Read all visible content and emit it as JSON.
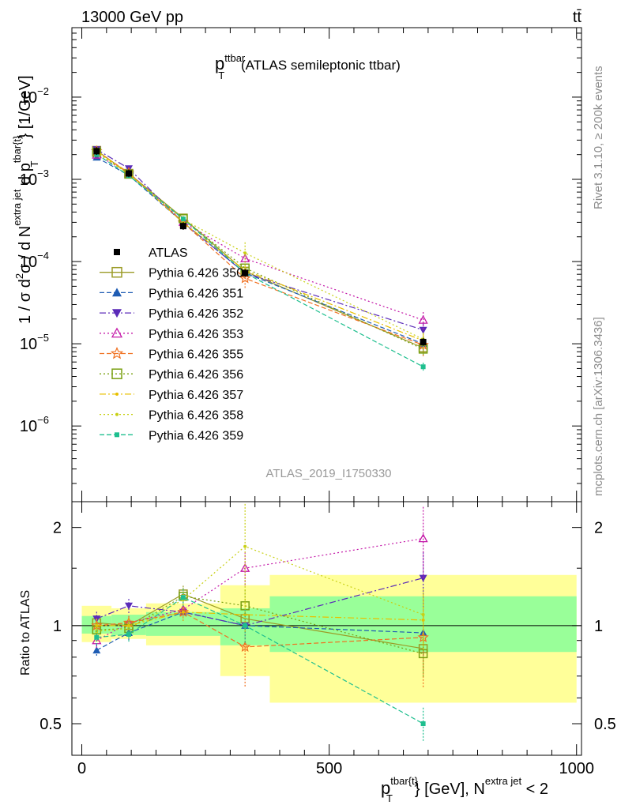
{
  "header": {
    "left": "13000 GeV pp",
    "right": "tt̄"
  },
  "side_texts": {
    "rivet": "Rivet 3.1.10, ≥ 200k events",
    "mcplots": "mcplots.cern.ch [arXiv:1306.3436]"
  },
  "axes": {
    "y_main_title": "1 / σ d²σ / d N^{extra jet} d p_T^{tbar{t}} [1/GeV]",
    "y_main_parts": {
      "prefix": "1 / σ d",
      "sup2": "2",
      "mid": "σ / d N",
      "sup_extra": "extra jet",
      "dp": " d p",
      "sub_t": "T",
      "sup_tbar": "tbar{t}",
      "unit": "} [1/GeV]"
    },
    "y_ratio_title": "Ratio to ATLAS",
    "x_parts": {
      "p": "p",
      "sub": "T",
      "sup": "tbar{t}",
      "unit": "} [GeV], N",
      "sup2": "extra jet",
      "end": " < 2"
    },
    "x_ticks": [
      "0",
      "500",
      "1000"
    ],
    "ratio_ticks": [
      "0.5",
      "1",
      "2"
    ],
    "main_ticks": [
      {
        "base": "10",
        "exp": "−6",
        "value": 1e-06
      },
      {
        "base": "10",
        "exp": "−5",
        "value": 1e-05
      },
      {
        "base": "10",
        "exp": "−4",
        "value": 0.0001
      },
      {
        "base": "10",
        "exp": "−3",
        "value": 0.001
      },
      {
        "base": "10",
        "exp": "−2",
        "value": 0.01
      }
    ]
  },
  "chart_data": {
    "type": "line",
    "title": "p_T^{ttbar} (ATLAS semileptonic ttbar)",
    "title_parts": {
      "p": "p",
      "sub": "T",
      "sup": "ttbar",
      "rest": " (ATLAS semileptonic ttbar)"
    },
    "analysis_label": "ATLAS_2019_I1750330",
    "xlabel": "p_T^{tbar{t}} [GeV], N^{extra jet} < 2",
    "ylabel": "1 / σ d²σ / d N^{extra jet} d p_T^{tbar{t}} [1/GeV]",
    "xlim": [
      -20,
      1010
    ],
    "ylim": [
      1.2e-07,
      0.07
    ],
    "ratio_ylim": [
      0.4,
      2.4
    ],
    "x": [
      30,
      95,
      205,
      330,
      690
    ],
    "bins": [
      [
        0,
        60
      ],
      [
        60,
        130
      ],
      [
        130,
        280
      ],
      [
        280,
        380
      ],
      [
        380,
        1000
      ]
    ],
    "atlas": {
      "name": "ATLAS",
      "values": [
        0.0022,
        0.00118,
        0.00027,
        7.25e-05,
        1.05e-05
      ],
      "band_inner": [
        [
          0.945,
          1.07
        ],
        [
          0.935,
          1.08
        ],
        [
          0.93,
          1.1
        ],
        [
          0.87,
          1.13
        ],
        [
          0.83,
          1.23
        ]
      ],
      "band_outer": [
        [
          0.89,
          1.15
        ],
        [
          0.91,
          1.13
        ],
        [
          0.87,
          1.17
        ],
        [
          0.7,
          1.33
        ],
        [
          0.58,
          1.43
        ]
      ]
    },
    "series": [
      {
        "name": "Pythia 6.426 350",
        "color": "#9b9b26",
        "dash": "",
        "marker": "square-open",
        "ratio": [
          1.02,
          1.0,
          1.25,
          1.05,
          0.85
        ],
        "err": [
          0.05,
          0.05,
          0.06,
          0.1,
          0.15
        ]
      },
      {
        "name": "Pythia 6.426 351",
        "color": "#1f5cb3",
        "dash": "6,3",
        "marker": "triangle-up",
        "ratio": [
          0.84,
          0.95,
          1.1,
          1.0,
          0.95
        ],
        "err": [
          0.04,
          0.05,
          0.06,
          0.1,
          0.15
        ]
      },
      {
        "name": "Pythia 6.426 352",
        "color": "#5b2bb8",
        "dash": "8,3,2,3",
        "marker": "triangle-down",
        "ratio": [
          1.05,
          1.15,
          1.1,
          1.0,
          1.4
        ],
        "err": [
          0.05,
          0.05,
          0.06,
          0.1,
          0.2
        ]
      },
      {
        "name": "Pythia 6.426 353",
        "color": "#c418a8",
        "dash": "2,3",
        "marker": "triangle-open",
        "ratio": [
          0.9,
          1.02,
          1.12,
          1.5,
          1.85
        ],
        "err": [
          0.05,
          0.05,
          0.06,
          0.12,
          0.25
        ]
      },
      {
        "name": "Pythia 6.426 355",
        "color": "#f07020",
        "dash": "6,3",
        "marker": "star-open",
        "ratio": [
          1.0,
          1.02,
          1.1,
          0.86,
          0.92
        ],
        "err": [
          0.05,
          0.05,
          0.06,
          0.25,
          0.3
        ]
      },
      {
        "name": "Pythia 6.426 356",
        "color": "#7aa012",
        "dash": "2,3",
        "marker": "square-open",
        "ratio": [
          0.97,
          0.98,
          1.23,
          1.15,
          0.82
        ],
        "err": [
          0.05,
          0.05,
          0.06,
          0.12,
          0.15
        ]
      },
      {
        "name": "Pythia 6.426 357",
        "color": "#e8c000",
        "dash": "8,3,2,3",
        "marker": "dot",
        "ratio": [
          1.0,
          1.0,
          1.1,
          1.08,
          1.04
        ],
        "err": [
          0.05,
          0.05,
          0.06,
          0.12,
          0.2
        ]
      },
      {
        "name": "Pythia 6.426 358",
        "color": "#c8d014",
        "dash": "2,3",
        "marker": "dot",
        "ratio": [
          0.96,
          0.98,
          1.2,
          1.75,
          1.08
        ],
        "err": [
          0.05,
          0.05,
          0.06,
          0.35,
          0.2
        ]
      },
      {
        "name": "Pythia 6.426 359",
        "color": "#1fbf8f",
        "dash": "6,3",
        "marker": "square-filled",
        "ratio": [
          0.92,
          0.94,
          1.22,
          1.0,
          0.5
        ],
        "err": [
          0.05,
          0.05,
          0.06,
          0.12,
          0.12
        ]
      }
    ]
  }
}
